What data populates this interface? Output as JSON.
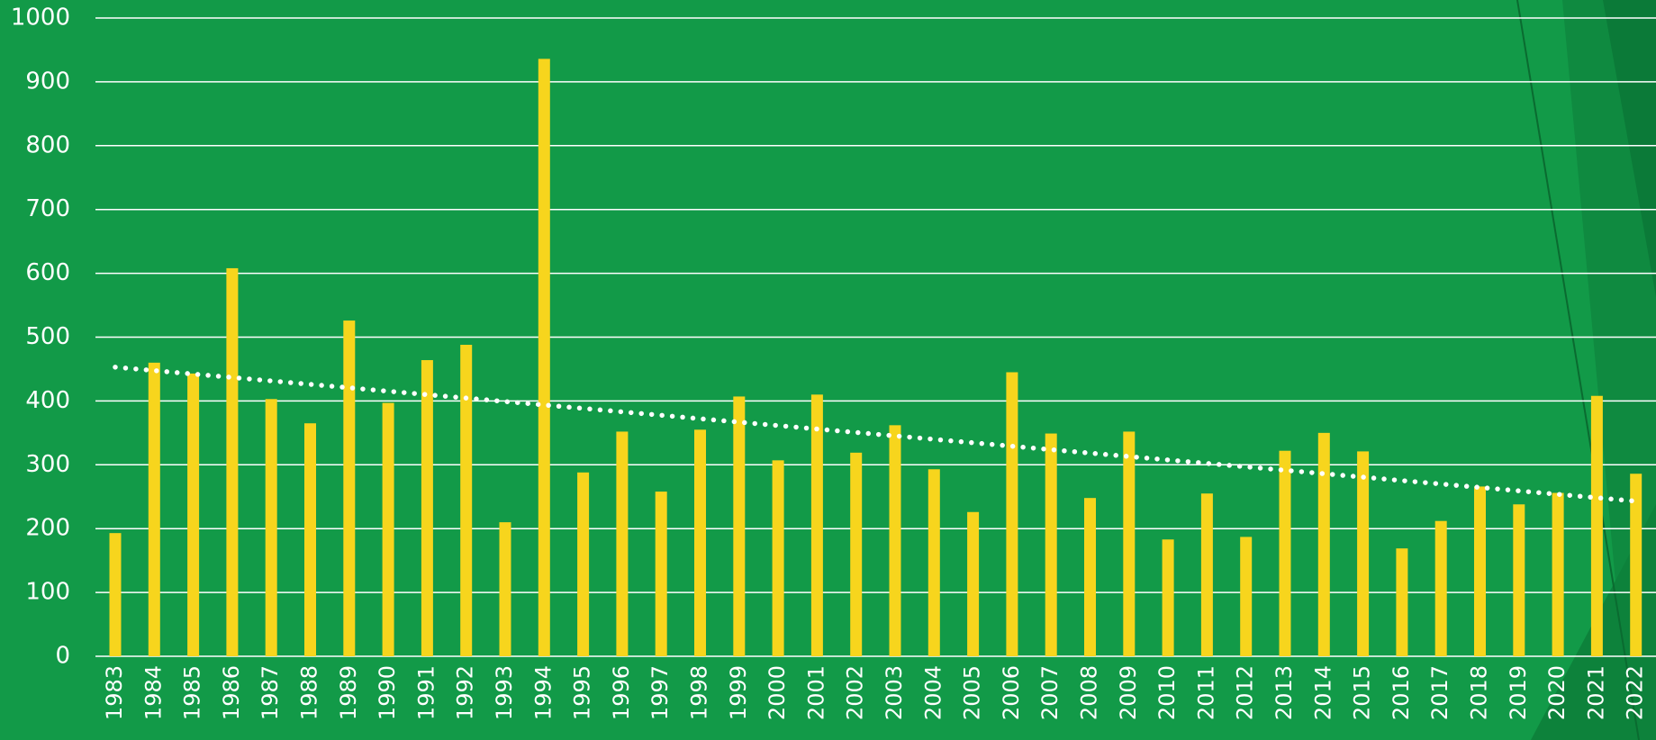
{
  "chart_data": {
    "type": "bar",
    "categories": [
      "1983",
      "1984",
      "1985",
      "1986",
      "1987",
      "1988",
      "1989",
      "1990",
      "1991",
      "1992",
      "1993",
      "1994",
      "1995",
      "1996",
      "1997",
      "1998",
      "1999",
      "2000",
      "2001",
      "2002",
      "2003",
      "2004",
      "2005",
      "2006",
      "2007",
      "2008",
      "2009",
      "2010",
      "2011",
      "2012",
      "2013",
      "2014",
      "2015",
      "2016",
      "2017",
      "2018",
      "2019",
      "2020",
      "2021",
      "2022"
    ],
    "values": [
      193,
      460,
      443,
      608,
      403,
      365,
      526,
      397,
      464,
      488,
      210,
      936,
      288,
      352,
      258,
      355,
      407,
      307,
      410,
      319,
      362,
      293,
      226,
      445,
      349,
      248,
      352,
      183,
      255,
      187,
      322,
      350,
      321,
      169,
      212,
      266,
      238,
      256,
      408,
      286
    ],
    "color": "#f7d51d",
    "trend": [
      453,
      243
    ],
    "ylim": [
      0,
      1000
    ],
    "yticks": [
      0,
      100,
      200,
      300,
      400,
      500,
      600,
      700,
      800,
      900,
      1000
    ],
    "grid": true
  }
}
